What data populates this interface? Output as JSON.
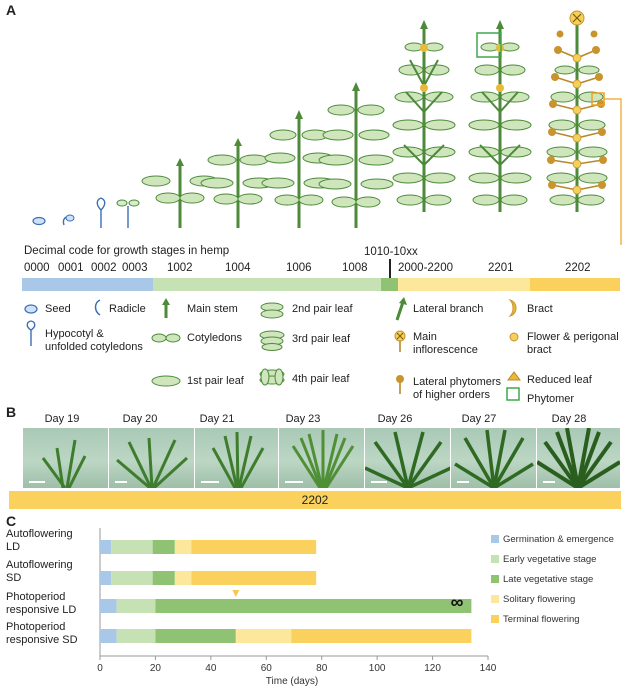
{
  "panel_a": {
    "letter": "A",
    "decimal_title": "Decimal code for growth stages in hemp",
    "marker_code": "1010-10xx",
    "codes": [
      "0000",
      "0001",
      "0002",
      "0003",
      "1002",
      "1004",
      "1006",
      "1008",
      "2000-2200",
      "2201",
      "2202"
    ],
    "stage_bar_colors": [
      "#a9c8e8",
      "#c6e2b5",
      "#8fc273",
      "#fde79a",
      "#f9d15c"
    ],
    "legend": [
      {
        "icon": "seed-icon",
        "label": "Seed"
      },
      {
        "icon": "radicle-icon",
        "label": "Radicle"
      },
      {
        "icon": "hypocotyl-icon",
        "label": "Hypocotyl & unfolded cotyledons"
      },
      {
        "icon": "main-stem-icon",
        "label": "Main stem"
      },
      {
        "icon": "cotyledons-icon",
        "label": "Cotyledons"
      },
      {
        "icon": "first-leaf-icon",
        "label": "1st pair leaf"
      },
      {
        "icon": "second-leaf-icon",
        "label": "2nd pair leaf"
      },
      {
        "icon": "third-leaf-icon",
        "label": "3rd pair leaf"
      },
      {
        "icon": "fourth-leaf-icon",
        "label": "4th pair leaf"
      },
      {
        "icon": "lateral-branch-icon",
        "label": "Lateral branch"
      },
      {
        "icon": "main-inflorescence-icon",
        "label": "Main inflorescence"
      },
      {
        "icon": "lateral-phytomer-icon",
        "label": "Lateral phytomers of higher orders"
      },
      {
        "icon": "bract-icon",
        "label": "Bract"
      },
      {
        "icon": "flower-icon",
        "label": "Flower & perigonal bract"
      },
      {
        "icon": "reduced-leaf-icon",
        "label": "Reduced leaf"
      },
      {
        "icon": "phytomer-icon",
        "label": "Phytomer"
      }
    ]
  },
  "panel_b": {
    "letter": "B",
    "days": [
      "Day 19",
      "Day 20",
      "Day 21",
      "Day 23",
      "Day 26",
      "Day 27",
      "Day 28"
    ],
    "stage_code": "2202"
  },
  "panel_c": {
    "letter": "C",
    "row_labels": [
      {
        "line1": "Autoflowering",
        "line2": "LD"
      },
      {
        "line1": "Autoflowering",
        "line2": "SD"
      },
      {
        "line1": "Photoperiod",
        "line2": "responsive LD"
      },
      {
        "line1": "Photoperiod",
        "line2": "responsive SD"
      }
    ],
    "infinity": "∞"
  },
  "chart_data": {
    "type": "bar",
    "orientation": "horizontal",
    "stacked": true,
    "xlabel": "Time (days)",
    "xlim": [
      0,
      140
    ],
    "xticks": [
      0,
      20,
      40,
      60,
      80,
      100,
      120,
      140
    ],
    "categories": [
      "Autoflowering LD",
      "Autoflowering SD",
      "Photoperiod responsive LD",
      "Photoperiod responsive SD"
    ],
    "series": [
      {
        "name": "Germination & emergence",
        "color": "#a9c8e8",
        "values": [
          4,
          4,
          6,
          6
        ]
      },
      {
        "name": "Early vegetative stage",
        "color": "#c6e2b5",
        "values": [
          15,
          15,
          14,
          14
        ]
      },
      {
        "name": "Late vegetative stage",
        "color": "#8fc273",
        "values": [
          8,
          8,
          114,
          29
        ]
      },
      {
        "name": "Solitary flowering",
        "color": "#fde79a",
        "values": [
          6,
          6,
          0,
          20
        ]
      },
      {
        "name": "Terminal flowering",
        "color": "#f9d15c",
        "values": [
          45,
          45,
          0,
          65
        ]
      }
    ],
    "annotation_marker_day": 49
  }
}
